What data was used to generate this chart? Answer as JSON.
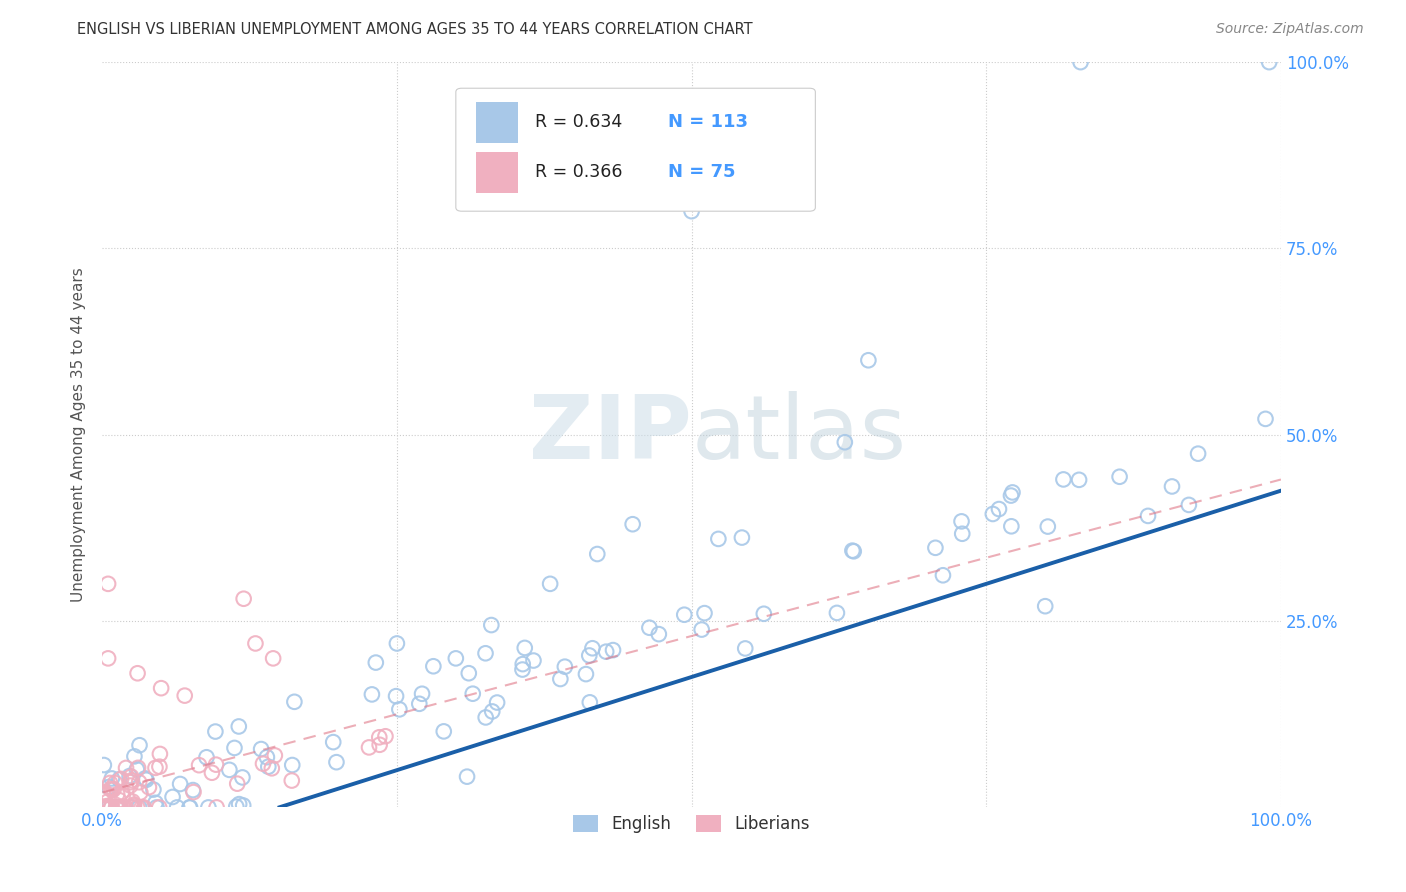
{
  "title": "ENGLISH VS LIBERIAN UNEMPLOYMENT AMONG AGES 35 TO 44 YEARS CORRELATION CHART",
  "source": "Source: ZipAtlas.com",
  "ylabel": "Unemployment Among Ages 35 to 44 years",
  "xlim": [
    0,
    1.0
  ],
  "ylim": [
    0,
    1.0
  ],
  "english_R": "0.634",
  "english_N": "113",
  "liberian_R": "0.366",
  "liberian_N": "75",
  "english_color": "#a8c8e8",
  "liberian_color": "#f0b0c0",
  "english_line_color": "#1a5fa8",
  "liberian_line_color": "#e07888",
  "grid_color": "#cccccc",
  "legend_english": "English",
  "legend_liberian": "Liberians",
  "eng_slope": 0.5,
  "eng_intercept": -0.075,
  "lib_slope": 0.42,
  "lib_intercept": 0.02,
  "title_color": "#333333",
  "source_color": "#888888",
  "tick_color": "#4499ff",
  "label_color": "#555555",
  "watermark_color": "#ddeeff"
}
